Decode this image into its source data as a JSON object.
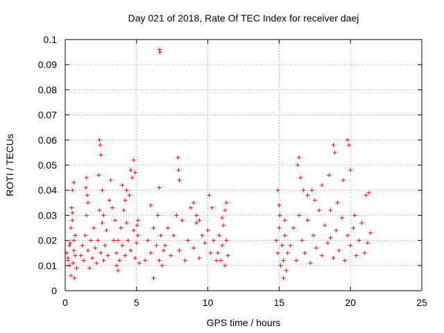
{
  "chart_data": {
    "type": "scatter",
    "title": "Day 021 of 2018, Rate Of TEC Index for receiver daej",
    "xlabel": "GPS time / hours",
    "ylabel": "ROTI / TECUs",
    "xlim": [
      0,
      25
    ],
    "ylim": [
      0,
      0.1
    ],
    "x_ticks": [
      0,
      5,
      10,
      15,
      20,
      25
    ],
    "x_tick_labels": [
      "0",
      "5",
      "10",
      "15",
      "20",
      "25"
    ],
    "y_ticks": [
      0,
      0.01,
      0.02,
      0.03,
      0.04,
      0.05,
      0.06,
      0.07,
      0.08,
      0.09,
      0.1
    ],
    "y_tick_labels": [
      "0",
      "0.01",
      "0.02",
      "0.03",
      "0.04",
      "0.05",
      "0.06",
      "0.07",
      "0.08",
      "0.09",
      "0.1"
    ],
    "grid": true,
    "marker": "+",
    "color": "#ff0000",
    "series": [
      {
        "name": "ROTI",
        "x": [
          0.1,
          0.2,
          0.3,
          0.4,
          0.5,
          0.6,
          0.7,
          0.8,
          0.5,
          0.6,
          0.7,
          0.3,
          0.4,
          0.2,
          0.5,
          0.6,
          0.35,
          0.45,
          0.55,
          0.65,
          1.1,
          1.2,
          1.3,
          1.4,
          1.5,
          1.6,
          1.7,
          1.8,
          1.9,
          2.0,
          2.1,
          2.2,
          2.3,
          2.4,
          2.5,
          2.6,
          2.7,
          2.8,
          2.9,
          3.0,
          1.45,
          1.5,
          1.55,
          1.6,
          2.4,
          2.45,
          2.5,
          2.35,
          2.6,
          2.7,
          3.2,
          3.1,
          3.3,
          3.5,
          3.4,
          3.6,
          3.7,
          3.8,
          3.9,
          4.0,
          4.1,
          4.2,
          4.3,
          4.4,
          4.5,
          4.6,
          4.7,
          4.8,
          4.9,
          5.0,
          5.1,
          5.2,
          4.6,
          4.8,
          4.9,
          4.3,
          4.2,
          4.0,
          5.05,
          5.1,
          3.6,
          3.7,
          5.6,
          5.8,
          6.0,
          6.2,
          6.4,
          6.5,
          6.6,
          6.7,
          6.8,
          6.9,
          6.62,
          6.64,
          6.6,
          6.2,
          6.0,
          7.0,
          7.2,
          7.4,
          7.6,
          7.8,
          8.0,
          8.2,
          8.4,
          8.6,
          8.8,
          9.0,
          9.2,
          9.4,
          9.6,
          9.8,
          10.0,
          10.2,
          10.4,
          10.6,
          7.9,
          7.95,
          8.0,
          9.0,
          9.2,
          9.4,
          10.1,
          10.3,
          10.7,
          10.8,
          10.9,
          11.0,
          11.1,
          11.2,
          11.3,
          11.4,
          11.0,
          11.2,
          11.3,
          14.8,
          14.9,
          15.0,
          15.1,
          15.2,
          15.3,
          15.4,
          15.5,
          15.6,
          14.9,
          15.0,
          15.05,
          15.3,
          15.4,
          15.8,
          16.0,
          16.2,
          16.4,
          16.6,
          16.8,
          17.0,
          17.2,
          17.4,
          17.6,
          17.8,
          18.0,
          18.2,
          18.4,
          18.6,
          18.8,
          19.0,
          19.2,
          19.4,
          19.6,
          19.8,
          20.0,
          20.2,
          20.4,
          20.6,
          20.8,
          21.0,
          21.2,
          21.4,
          16.3,
          16.5,
          16.7,
          17.0,
          17.5,
          18.0,
          18.5,
          18.8,
          18.9,
          19.5,
          19.8,
          19.9,
          20.0,
          16.4,
          17.3,
          18.6,
          19.1,
          20.3,
          21.1,
          21.3
        ],
        "y": [
          0.015,
          0.012,
          0.018,
          0.025,
          0.031,
          0.02,
          0.014,
          0.009,
          0.04,
          0.043,
          0.022,
          0.01,
          0.006,
          0.013,
          0.028,
          0.016,
          0.019,
          0.033,
          0.011,
          0.005,
          0.014,
          0.018,
          0.012,
          0.022,
          0.03,
          0.016,
          0.009,
          0.02,
          0.013,
          0.025,
          0.017,
          0.011,
          0.02,
          0.032,
          0.015,
          0.027,
          0.012,
          0.018,
          0.024,
          0.014,
          0.041,
          0.045,
          0.038,
          0.035,
          0.06,
          0.058,
          0.054,
          0.046,
          0.04,
          0.03,
          0.044,
          0.036,
          0.033,
          0.028,
          0.02,
          0.015,
          0.02,
          0.012,
          0.025,
          0.018,
          0.032,
          0.014,
          0.027,
          0.02,
          0.038,
          0.016,
          0.045,
          0.024,
          0.013,
          0.019,
          0.028,
          0.011,
          0.048,
          0.052,
          0.047,
          0.04,
          0.036,
          0.042,
          0.026,
          0.022,
          0.01,
          0.008,
          0.012,
          0.02,
          0.015,
          0.025,
          0.018,
          0.03,
          0.012,
          0.022,
          0.01,
          0.016,
          0.096,
          0.095,
          0.041,
          0.005,
          0.034,
          0.018,
          0.025,
          0.014,
          0.022,
          0.03,
          0.016,
          0.028,
          0.012,
          0.02,
          0.033,
          0.017,
          0.027,
          0.013,
          0.022,
          0.019,
          0.024,
          0.015,
          0.02,
          0.012,
          0.053,
          0.048,
          0.044,
          0.035,
          0.03,
          0.028,
          0.038,
          0.033,
          0.015,
          0.022,
          0.012,
          0.018,
          0.026,
          0.01,
          0.02,
          0.014,
          0.029,
          0.032,
          0.035,
          0.02,
          0.015,
          0.025,
          0.01,
          0.018,
          0.012,
          0.022,
          0.008,
          0.015,
          0.04,
          0.034,
          0.03,
          0.005,
          0.028,
          0.018,
          0.025,
          0.012,
          0.03,
          0.02,
          0.015,
          0.028,
          0.011,
          0.022,
          0.017,
          0.032,
          0.014,
          0.026,
          0.019,
          0.021,
          0.013,
          0.024,
          0.016,
          0.029,
          0.012,
          0.022,
          0.018,
          0.025,
          0.014,
          0.02,
          0.027,
          0.015,
          0.019,
          0.023,
          0.05,
          0.045,
          0.04,
          0.038,
          0.036,
          0.042,
          0.046,
          0.058,
          0.055,
          0.044,
          0.06,
          0.058,
          0.048,
          0.053,
          0.04,
          0.032,
          0.035,
          0.03,
          0.038,
          0.039
        ]
      }
    ]
  }
}
